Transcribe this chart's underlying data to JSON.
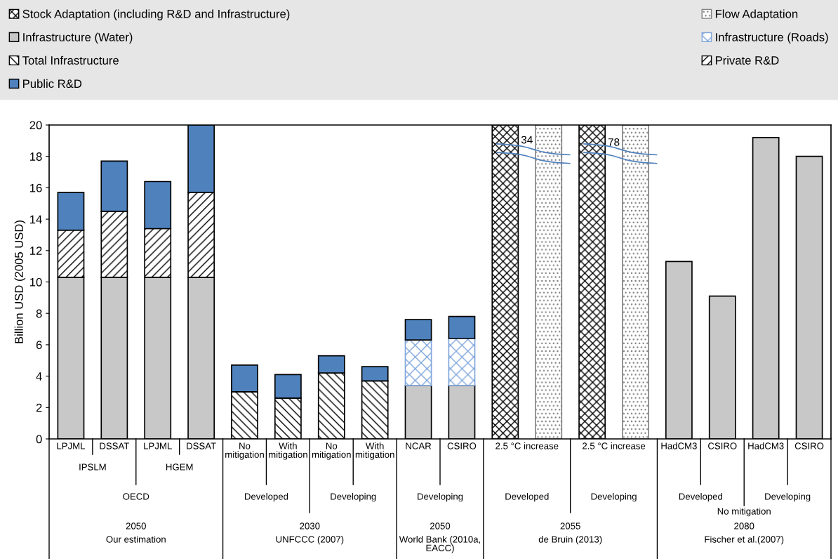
{
  "chart_data": {
    "type": "bar",
    "stacked": true,
    "ylabel": "Billion USD (2005 USD)",
    "categories": [
      "LPJML",
      "DSSAT",
      "LPJML",
      "DSSAT",
      "No\nmitigation",
      "With\nmitigation",
      "No\nmitigation",
      "With\nmitigation",
      "NCAR",
      "CSIRO",
      null,
      null,
      null,
      null,
      "HadCM3",
      "CSIRO",
      "HadCM3",
      "CSIRO"
    ],
    "series": [
      {
        "name": "Stock Adaptation (including R&D and Infrastructure)",
        "color": "#000000",
        "values": [
          null,
          null,
          null,
          null,
          null,
          null,
          null,
          null,
          null,
          null,
          20,
          null,
          20,
          null,
          null,
          null,
          null,
          null
        ]
      },
      {
        "name": "Flow Adaptation",
        "color": "#808080",
        "values": [
          null,
          null,
          null,
          null,
          null,
          null,
          null,
          null,
          null,
          null,
          null,
          20,
          null,
          20,
          null,
          null,
          null,
          null
        ]
      },
      {
        "name": "Infrastructure (Water)",
        "color": "#c8c8c8",
        "values": [
          10.3,
          10.3,
          10.3,
          10.3,
          null,
          null,
          null,
          null,
          3.4,
          3.4,
          null,
          null,
          null,
          null,
          11.3,
          9.1,
          19.2,
          18.0
        ]
      },
      {
        "name": "Infrastructure (Roads)",
        "color": "#7fa6dc",
        "values": [
          null,
          null,
          null,
          null,
          null,
          null,
          null,
          null,
          2.9,
          3.0,
          null,
          null,
          null,
          null,
          null,
          null,
          null,
          null
        ]
      },
      {
        "name": "Total Infrastructure",
        "color": "#000000",
        "values": [
          null,
          null,
          null,
          null,
          3.0,
          2.6,
          4.2,
          3.7,
          null,
          null,
          null,
          null,
          null,
          null,
          null,
          null,
          null,
          null
        ]
      },
      {
        "name": "Private R&D",
        "color": "#000000",
        "values": [
          3.0,
          4.2,
          3.1,
          5.4,
          null,
          null,
          null,
          null,
          null,
          null,
          null,
          null,
          null,
          null,
          null,
          null,
          null,
          null
        ]
      },
      {
        "name": "Public R&D",
        "color": "#4f81bd",
        "values": [
          2.4,
          3.2,
          3.0,
          4.3,
          1.7,
          1.5,
          1.1,
          0.9,
          1.3,
          1.4,
          null,
          null,
          null,
          null,
          null,
          null,
          null,
          null
        ]
      }
    ],
    "ylim": [
      0,
      20
    ],
    "yticks": [
      0,
      2,
      4,
      6,
      8,
      10,
      12,
      14,
      16,
      18,
      20
    ],
    "grid": false,
    "legend": "top",
    "annotations": [
      "IPSLM",
      "HGEM",
      "OECD",
      "2050",
      "Our estimation",
      "Developed",
      "Developing",
      "2030",
      "UNFCCC (2007)",
      "Developing",
      "2050",
      "World Bank (2010a,\nEACC)",
      "2.5 °C increase",
      "2.5 °C increase",
      "Developed",
      "Developing",
      "2055",
      "de Bruin (2013)",
      "Developed",
      "Developing",
      "No mitigation",
      "2080",
      "Fischer et al.(2007)",
      "34",
      "78"
    ]
  }
}
